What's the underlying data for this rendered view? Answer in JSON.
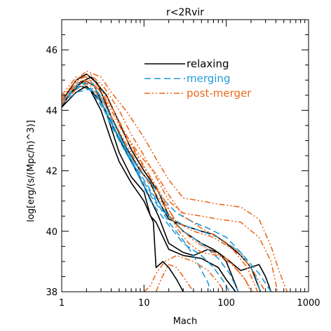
{
  "chart_data": {
    "type": "line",
    "title": "r<2Rvir",
    "xlabel": "Mach",
    "ylabel": "log[erg/(s/(Mpc/h)^3)]",
    "x_scale": "log",
    "xlim": [
      1,
      1000
    ],
    "ylim": [
      38,
      47
    ],
    "x_ticks": [
      1,
      10,
      100,
      1000
    ],
    "x_tick_labels": [
      "1",
      "10",
      "100",
      "1000"
    ],
    "y_ticks": [
      38,
      40,
      42,
      44,
      46
    ],
    "y_tick_labels": [
      "38",
      "40",
      "42",
      "44",
      "46"
    ],
    "grid": false,
    "legend_position": "top-center",
    "legend": [
      {
        "label": "relaxing",
        "color": "#000000",
        "dash": "solid"
      },
      {
        "label": "merging",
        "color": "#1e9bd7",
        "dash": "dashed"
      },
      {
        "label": "post-merger",
        "color": "#ec6a1f",
        "dash": "dash-dot-dot"
      }
    ],
    "series": [
      {
        "group": "relaxing",
        "points": [
          [
            1.0,
            44.1
          ],
          [
            1.3,
            44.6
          ],
          [
            1.7,
            44.8
          ],
          [
            2.2,
            44.7
          ],
          [
            3,
            44.0
          ],
          [
            4,
            43.0
          ],
          [
            5,
            42.3
          ],
          [
            7,
            41.6
          ],
          [
            10,
            41.0
          ],
          [
            13,
            40.3
          ],
          [
            14,
            38.8
          ],
          [
            17,
            39.0
          ],
          [
            20,
            38.8
          ],
          [
            25,
            38.4
          ],
          [
            30,
            38.0
          ]
        ]
      },
      {
        "group": "relaxing",
        "points": [
          [
            1.0,
            44.2
          ],
          [
            1.4,
            44.7
          ],
          [
            1.9,
            45.0
          ],
          [
            2.5,
            44.8
          ],
          [
            3.5,
            43.9
          ],
          [
            5,
            42.6
          ],
          [
            7,
            41.8
          ],
          [
            10,
            41.3
          ],
          [
            12,
            40.5
          ],
          [
            14,
            40.3
          ],
          [
            20,
            39.4
          ],
          [
            30,
            39.2
          ],
          [
            50,
            39.1
          ],
          [
            80,
            38.8
          ],
          [
            100,
            38.4
          ],
          [
            130,
            38.0
          ]
        ]
      },
      {
        "group": "relaxing",
        "points": [
          [
            1.0,
            44.3
          ],
          [
            1.5,
            45.0
          ],
          [
            2.0,
            45.2
          ],
          [
            2.7,
            44.9
          ],
          [
            4,
            43.8
          ],
          [
            6,
            42.8
          ],
          [
            9,
            42.0
          ],
          [
            12,
            41.6
          ],
          [
            15,
            41.0
          ],
          [
            20,
            40.4
          ],
          [
            30,
            40.2
          ],
          [
            50,
            40.0
          ],
          [
            70,
            39.9
          ],
          [
            100,
            39.6
          ],
          [
            150,
            39.2
          ],
          [
            200,
            38.8
          ],
          [
            260,
            38.0
          ]
        ]
      },
      {
        "group": "relaxing",
        "points": [
          [
            1.0,
            44.2
          ],
          [
            1.6,
            44.9
          ],
          [
            2.3,
            45.1
          ],
          [
            3.5,
            44.5
          ],
          [
            5,
            43.6
          ],
          [
            7,
            42.7
          ],
          [
            10,
            42.0
          ],
          [
            15,
            41.3
          ],
          [
            20,
            40.5
          ],
          [
            30,
            40.0
          ],
          [
            50,
            39.6
          ],
          [
            70,
            39.4
          ],
          [
            100,
            39.1
          ],
          [
            150,
            38.7
          ],
          [
            250,
            38.9
          ],
          [
            300,
            38.5
          ],
          [
            350,
            38.0
          ]
        ]
      },
      {
        "group": "relaxing",
        "points": [
          [
            1.0,
            44.1
          ],
          [
            1.5,
            44.6
          ],
          [
            2.0,
            44.8
          ],
          [
            3.0,
            44.3
          ],
          [
            4.5,
            43.3
          ],
          [
            7,
            42.3
          ],
          [
            10,
            41.5
          ],
          [
            15,
            40.5
          ],
          [
            20,
            39.6
          ],
          [
            30,
            39.3
          ],
          [
            40,
            39.2
          ],
          [
            60,
            39.4
          ],
          [
            80,
            39.3
          ],
          [
            100,
            39.0
          ],
          [
            140,
            38.0
          ]
        ]
      },
      {
        "group": "merging",
        "points": [
          [
            1.0,
            44.2
          ],
          [
            1.5,
            44.8
          ],
          [
            2.2,
            45.0
          ],
          [
            3.2,
            44.3
          ],
          [
            5,
            43.2
          ],
          [
            7,
            42.4
          ],
          [
            10,
            41.5
          ],
          [
            15,
            40.8
          ],
          [
            20,
            40.5
          ],
          [
            30,
            40.2
          ],
          [
            50,
            40.0
          ],
          [
            80,
            39.8
          ],
          [
            150,
            39.3
          ],
          [
            220,
            38.6
          ],
          [
            260,
            38.0
          ]
        ]
      },
      {
        "group": "merging",
        "points": [
          [
            1.0,
            44.3
          ],
          [
            1.6,
            44.9
          ],
          [
            2.4,
            44.9
          ],
          [
            3.5,
            44.1
          ],
          [
            5,
            43.0
          ],
          [
            8,
            42.0
          ],
          [
            12,
            41.0
          ],
          [
            20,
            40.2
          ],
          [
            30,
            39.6
          ],
          [
            50,
            39.2
          ],
          [
            70,
            38.8
          ],
          [
            90,
            38.4
          ],
          [
            110,
            38.0
          ]
        ]
      },
      {
        "group": "merging",
        "points": [
          [
            1.0,
            44.2
          ],
          [
            1.4,
            44.7
          ],
          [
            2.0,
            44.9
          ],
          [
            3.0,
            44.3
          ],
          [
            4,
            43.6
          ],
          [
            6,
            42.7
          ],
          [
            9,
            41.8
          ],
          [
            14,
            41.0
          ],
          [
            20,
            40.3
          ],
          [
            30,
            39.7
          ],
          [
            40,
            39.2
          ],
          [
            50,
            38.7
          ],
          [
            60,
            38.3
          ],
          [
            65,
            38.0
          ]
        ]
      },
      {
        "group": "merging",
        "points": [
          [
            1.0,
            44.2
          ],
          [
            1.5,
            44.6
          ],
          [
            2.2,
            44.7
          ],
          [
            3.3,
            44.0
          ],
          [
            5,
            43.1
          ],
          [
            8,
            42.2
          ],
          [
            12,
            41.6
          ],
          [
            18,
            41.0
          ],
          [
            25,
            40.6
          ],
          [
            40,
            40.3
          ],
          [
            60,
            40.1
          ],
          [
            100,
            39.8
          ],
          [
            150,
            39.3
          ],
          [
            250,
            38.6
          ],
          [
            350,
            38.0
          ]
        ]
      },
      {
        "group": "merging",
        "points": [
          [
            1.0,
            44.3
          ],
          [
            1.7,
            44.8
          ],
          [
            2.6,
            44.6
          ],
          [
            4,
            43.5
          ],
          [
            6,
            42.6
          ],
          [
            9,
            41.9
          ],
          [
            13,
            41.2
          ],
          [
            20,
            40.5
          ],
          [
            30,
            40.0
          ],
          [
            50,
            39.6
          ],
          [
            80,
            39.1
          ],
          [
            110,
            38.6
          ],
          [
            140,
            38.0
          ]
        ]
      },
      {
        "group": "post-merger",
        "points": [
          [
            1.0,
            44.4
          ],
          [
            1.5,
            45.0
          ],
          [
            2.0,
            45.3
          ],
          [
            3.0,
            45.1
          ],
          [
            4,
            44.6
          ],
          [
            6,
            44.0
          ],
          [
            8,
            43.5
          ],
          [
            10,
            43.1
          ],
          [
            14,
            42.4
          ],
          [
            20,
            41.7
          ],
          [
            30,
            41.1
          ],
          [
            50,
            41.0
          ],
          [
            80,
            40.9
          ],
          [
            150,
            40.8
          ],
          [
            250,
            40.4
          ],
          [
            350,
            39.5
          ],
          [
            450,
            38.6
          ],
          [
            550,
            38.0
          ]
        ]
      },
      {
        "group": "post-merger",
        "points": [
          [
            1.0,
            44.3
          ],
          [
            1.6,
            45.0
          ],
          [
            2.2,
            45.2
          ],
          [
            3.2,
            44.8
          ],
          [
            5,
            44.0
          ],
          [
            7,
            43.2
          ],
          [
            10,
            42.5
          ],
          [
            14,
            41.8
          ],
          [
            20,
            41.0
          ],
          [
            30,
            40.6
          ],
          [
            50,
            40.5
          ],
          [
            80,
            40.4
          ],
          [
            150,
            40.3
          ],
          [
            250,
            39.8
          ],
          [
            350,
            39.0
          ],
          [
            420,
            38.0
          ]
        ]
      },
      {
        "group": "post-merger",
        "points": [
          [
            1.0,
            44.5
          ],
          [
            1.5,
            45.1
          ],
          [
            2.0,
            45.1
          ],
          [
            3.0,
            44.6
          ],
          [
            4.5,
            43.9
          ],
          [
            6,
            43.2
          ],
          [
            9,
            42.5
          ],
          [
            14,
            41.9
          ],
          [
            20,
            41.2
          ],
          [
            30,
            40.5
          ],
          [
            50,
            40.1
          ],
          [
            80,
            39.8
          ],
          [
            130,
            39.4
          ],
          [
            200,
            38.8
          ],
          [
            300,
            38.0
          ]
        ]
      },
      {
        "group": "post-merger",
        "points": [
          [
            1.0,
            44.4
          ],
          [
            1.4,
            44.9
          ],
          [
            1.9,
            45.0
          ],
          [
            2.8,
            44.7
          ],
          [
            4,
            44.0
          ],
          [
            6,
            43.1
          ],
          [
            9,
            42.3
          ],
          [
            13,
            41.6
          ],
          [
            18,
            40.9
          ],
          [
            25,
            40.3
          ],
          [
            40,
            40.0
          ],
          [
            70,
            39.8
          ],
          [
            120,
            39.4
          ],
          [
            180,
            38.8
          ],
          [
            240,
            38.0
          ]
        ]
      },
      {
        "group": "post-merger",
        "points": [
          [
            1.0,
            44.3
          ],
          [
            1.6,
            44.9
          ],
          [
            2.4,
            45.0
          ],
          [
            3.6,
            44.4
          ],
          [
            5,
            43.6
          ],
          [
            8,
            42.6
          ],
          [
            12,
            41.8
          ],
          [
            18,
            41.0
          ],
          [
            25,
            40.2
          ],
          [
            40,
            39.7
          ],
          [
            60,
            39.4
          ],
          [
            100,
            39.1
          ],
          [
            160,
            38.5
          ],
          [
            210,
            38.0
          ]
        ]
      },
      {
        "group": "post-merger",
        "points": [
          [
            1.0,
            44.2
          ],
          [
            1.5,
            44.7
          ],
          [
            2.1,
            44.9
          ],
          [
            3.2,
            44.3
          ],
          [
            5,
            43.3
          ],
          [
            8,
            42.3
          ],
          [
            12,
            41.5
          ],
          [
            18,
            40.8
          ],
          [
            25,
            40.1
          ],
          [
            35,
            39.6
          ],
          [
            50,
            39.3
          ],
          [
            80,
            39.2
          ],
          [
            120,
            38.9
          ],
          [
            170,
            38.4
          ],
          [
            200,
            38.0
          ]
        ]
      },
      {
        "group": "post-merger",
        "points": [
          [
            10,
            38.0
          ],
          [
            12,
            38.2
          ],
          [
            14,
            38.6
          ],
          [
            18,
            39.0
          ],
          [
            25,
            39.2
          ],
          [
            40,
            39.0
          ],
          [
            60,
            38.7
          ],
          [
            80,
            38.3
          ],
          [
            95,
            38.0
          ]
        ]
      },
      {
        "group": "post-merger",
        "points": [
          [
            14,
            38.0
          ],
          [
            16,
            38.4
          ],
          [
            20,
            38.9
          ],
          [
            25,
            38.8
          ],
          [
            30,
            38.5
          ],
          [
            40,
            38.0
          ]
        ]
      }
    ]
  }
}
